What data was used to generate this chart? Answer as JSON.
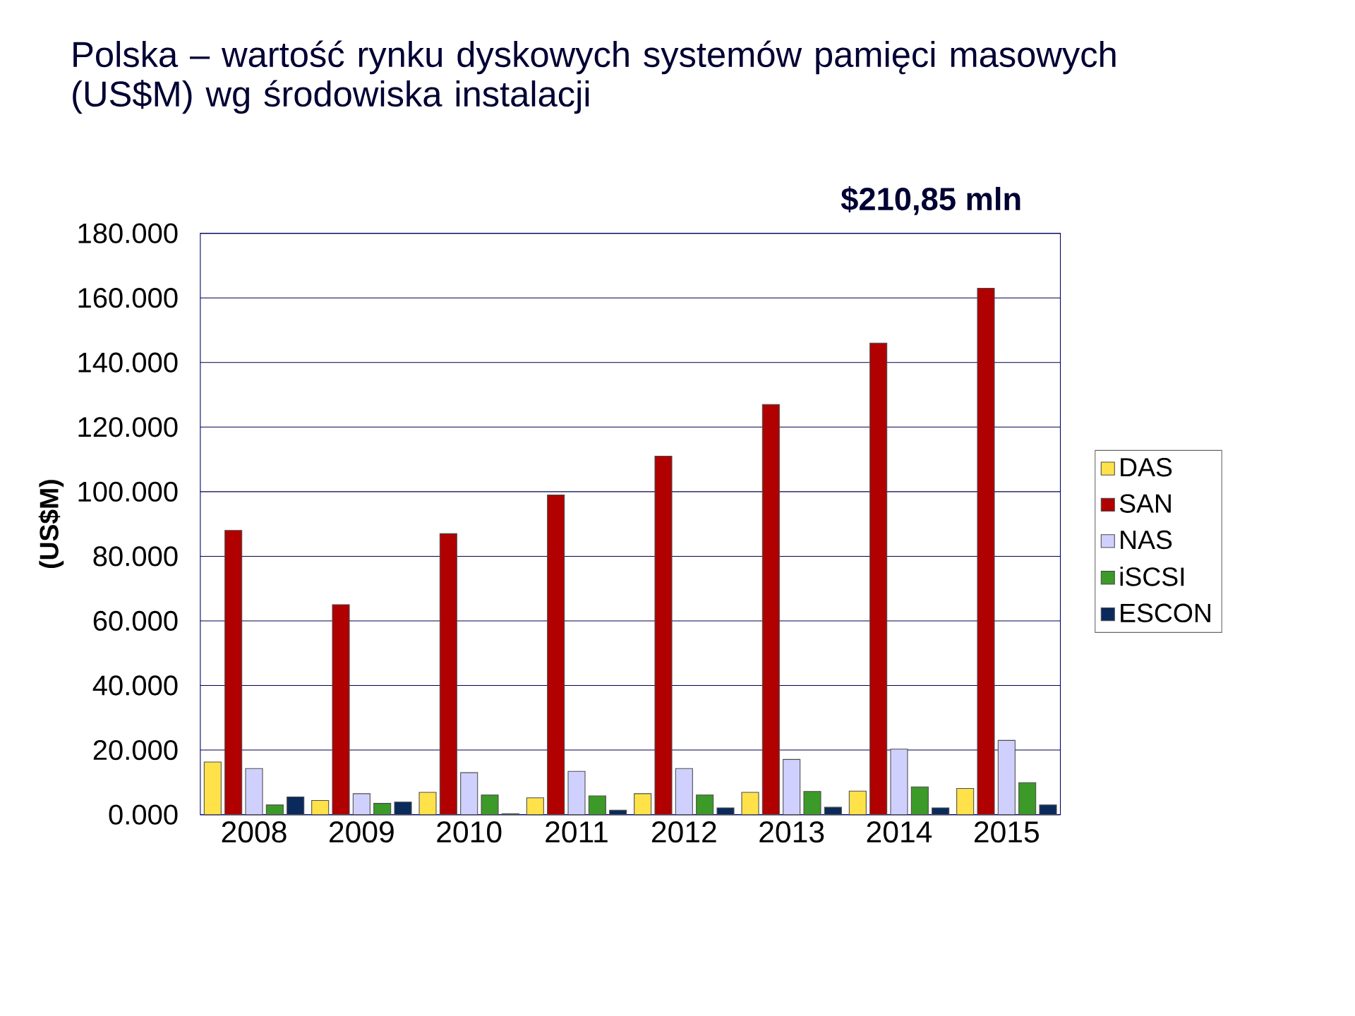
{
  "chart_data": {
    "type": "bar",
    "title": "Polska – wartość rynku dyskowych systemów pamięci masowych (US$M) wg środowiska instalacji",
    "ylabel": "(US$M)",
    "annotations": [
      "$210,85 mln"
    ],
    "categories": [
      "2008",
      "2009",
      "2010",
      "2011",
      "2012",
      "2013",
      "2014",
      "2015"
    ],
    "series": [
      {
        "name": "DAS",
        "color": "#ffe24a",
        "values": [
          16.3,
          4.4,
          6.9,
          5.2,
          6.5,
          6.9,
          7.3,
          8.1
        ]
      },
      {
        "name": "SAN",
        "color": "#b00000",
        "values": [
          88,
          65,
          87,
          99,
          111,
          127,
          146,
          163
        ]
      },
      {
        "name": "NAS",
        "color": "#d0d0ff",
        "values": [
          14.3,
          6.5,
          13,
          13.4,
          14.3,
          17.1,
          20.3,
          23
        ]
      },
      {
        "name": "iSCSI",
        "color": "#3c9a28",
        "values": [
          3,
          3.5,
          6.1,
          5.8,
          6.1,
          7.2,
          8.6,
          9.9
        ]
      },
      {
        "name": "ESCON",
        "color": "#0a2a5c",
        "values": [
          5.5,
          3.9,
          0.3,
          1.4,
          2.1,
          2.3,
          2.1,
          3
        ]
      }
    ],
    "ylim": [
      0,
      180
    ],
    "yticks": [
      {
        "value": 0,
        "label": "0.000"
      },
      {
        "value": 20,
        "label": "20.000"
      },
      {
        "value": 40,
        "label": "40.000"
      },
      {
        "value": 60,
        "label": "60.000"
      },
      {
        "value": 80,
        "label": "80.000"
      },
      {
        "value": 100,
        "label": "100.000"
      },
      {
        "value": 120,
        "label": "120.000"
      },
      {
        "value": 140,
        "label": "140.000"
      },
      {
        "value": 160,
        "label": "160.000"
      },
      {
        "value": 180,
        "label": "180.000"
      }
    ],
    "grid": "y",
    "legend": "right"
  }
}
